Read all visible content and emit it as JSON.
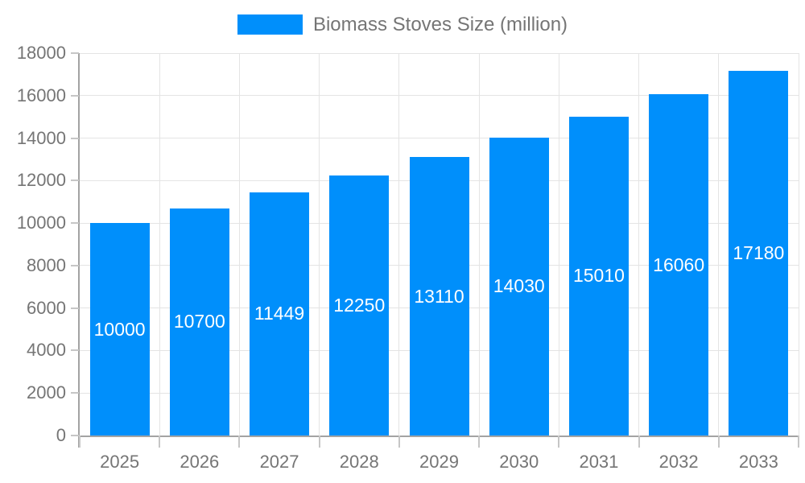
{
  "legend": {
    "label": "Biomass Stoves Size (million)"
  },
  "chart_data": {
    "type": "bar",
    "title": "Biomass Stoves Size (million)",
    "series_name": "Biomass Stoves Size (million)",
    "categories": [
      "2025",
      "2026",
      "2027",
      "2028",
      "2029",
      "2030",
      "2031",
      "2032",
      "2033"
    ],
    "values": [
      10000,
      10700,
      11449,
      12250,
      13110,
      14030,
      15010,
      16060,
      17180
    ],
    "xlabel": "",
    "ylabel": "",
    "ylim": [
      0,
      18000
    ],
    "ytick_step": 2000,
    "grid": true,
    "legend_position": "top-center",
    "value_labels": "inside-center",
    "bar_color": "#008FFB",
    "axis_label_color": "#757575",
    "value_label_color": "#ffffff"
  }
}
